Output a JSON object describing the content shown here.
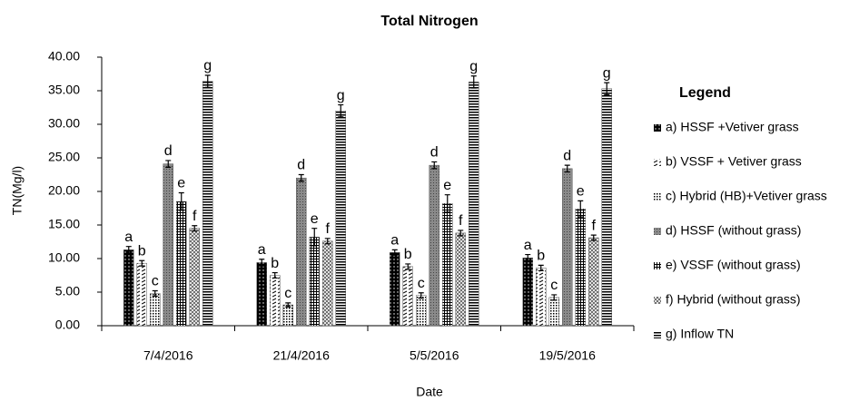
{
  "chart_data": {
    "type": "bar",
    "title": "Total Nitrogen",
    "x_label": "Date",
    "y_label": "TN(Mg/l)",
    "legend_title": "Legend",
    "legend": "right",
    "grid": false,
    "categories": [
      "7/4/2016",
      "21/4/2016",
      "5/5/2016",
      "19/5/2016"
    ],
    "ylim": [
      0,
      40
    ],
    "yticks": [
      {
        "value": 0,
        "label": "0.00"
      },
      {
        "value": 5,
        "label": "5.00"
      },
      {
        "value": 10,
        "label": "10.00"
      },
      {
        "value": 15,
        "label": "15.00"
      },
      {
        "value": 20,
        "label": "20.00"
      },
      {
        "value": 25,
        "label": "25.00"
      },
      {
        "value": 30,
        "label": "30.00"
      },
      {
        "value": 35,
        "label": "35.00"
      },
      {
        "value": 40,
        "label": "40.00"
      }
    ],
    "series": [
      {
        "name": "a) HSSF +Vetiver grass",
        "letter": "a",
        "color": "#000000",
        "values": [
          11.3,
          9.4,
          10.9,
          10.1
        ],
        "errors": [
          0.5,
          0.5,
          0.4,
          0.5
        ]
      },
      {
        "name": "b) VSSF + Vetiver grass",
        "letter": "b",
        "color": "#000000",
        "values": [
          9.3,
          7.5,
          8.8,
          8.6
        ],
        "errors": [
          0.4,
          0.4,
          0.4,
          0.4
        ]
      },
      {
        "name": "c) Hybrid (HB)+Vetiver grass",
        "letter": "c",
        "color": "#000000",
        "values": [
          4.8,
          3.1,
          4.5,
          4.2
        ],
        "errors": [
          0.4,
          0.3,
          0.4,
          0.4
        ]
      },
      {
        "name": "d) HSSF (without grass)",
        "letter": "d",
        "color": "#808080",
        "values": [
          24.1,
          22.0,
          23.9,
          23.4
        ],
        "errors": [
          0.5,
          0.5,
          0.5,
          0.5
        ]
      },
      {
        "name": "e) VSSF (without grass)",
        "letter": "e",
        "color": "#000000",
        "values": [
          18.5,
          13.2,
          18.2,
          17.4
        ],
        "errors": [
          1.3,
          1.3,
          1.3,
          1.2
        ]
      },
      {
        "name": "f) Hybrid (without grass)",
        "letter": "f",
        "color": "#000000",
        "values": [
          14.5,
          12.6,
          13.8,
          13.1
        ],
        "errors": [
          0.4,
          0.4,
          0.4,
          0.4
        ]
      },
      {
        "name": "g) Inflow TN",
        "letter": "g",
        "color": "#000000",
        "values": [
          36.4,
          32.0,
          36.3,
          35.3
        ],
        "errors": [
          0.9,
          0.9,
          0.9,
          0.9
        ]
      }
    ]
  }
}
